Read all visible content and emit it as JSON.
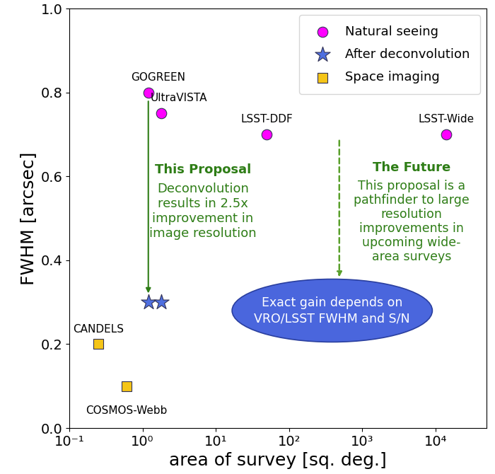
{
  "chart_data": {
    "type": "scatter",
    "x_label": "area of survey [sq. deg.]",
    "y_label": "FWHM [arcsec]",
    "log": "x",
    "grid": false,
    "legend": "upper right",
    "xlim": [
      0.1,
      50000
    ],
    "xticks": [
      {
        "value": 0.1,
        "label": "10⁻¹"
      },
      {
        "value": 1,
        "label": "10⁰"
      },
      {
        "value": 10,
        "label": "10¹"
      },
      {
        "value": 100,
        "label": "10²"
      },
      {
        "value": 1000,
        "label": "10³"
      },
      {
        "value": 10000,
        "label": "10⁴"
      }
    ],
    "ylim": [
      0.0,
      1.0
    ],
    "yticks": [
      0.0,
      0.2,
      0.4,
      0.6,
      0.8,
      1.0
    ],
    "series": [
      {
        "name": "Natural seeing",
        "color": "#ff00ff",
        "marker": "o",
        "x": [
          1.2,
          1.8,
          50,
          14000
        ],
        "values": [
          0.8,
          0.75,
          0.7,
          0.7
        ],
        "point_labels": [
          "GOGREEN",
          "UltraVISTA",
          "LSST-DDF",
          "LSST-Wide"
        ]
      },
      {
        "name": "After deconvolution",
        "color": "#4f6fe0",
        "marker": "*",
        "x": [
          1.2,
          1.8
        ],
        "values": [
          0.3,
          0.3
        ]
      },
      {
        "name": "Space imaging",
        "color": "#f5c518",
        "marker": "s",
        "x": [
          0.25,
          0.6
        ],
        "values": [
          0.2,
          0.1
        ],
        "point_labels": [
          "CANDELS",
          "COSMOS-Webb"
        ]
      }
    ],
    "proposal_note": {
      "heading": "This Proposal",
      "text": "Deconvolution\nresults in 2.5x\nimprovement in\nimage resolution"
    },
    "future_note": {
      "heading": "The Future",
      "text": "This proposal is a\npathfinder to large\nresolution\nimprovements in\nupcoming wide-\narea surveys"
    },
    "ellipse_text": "Exact gain depends on\nVRO/LSST FWHM and S/N"
  }
}
